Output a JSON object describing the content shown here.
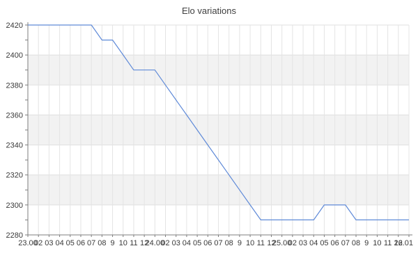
{
  "title": "Elo variations",
  "colors": {
    "background": "#ffffff",
    "band": "#f2f2f2",
    "vgrid": "#e4e4e4",
    "hgrid": "#dfdfdf",
    "axis": "#7d7d7d",
    "label_text": "#3a3a3a",
    "title_text": "#404040",
    "line": "#5f8ad8"
  },
  "chart_data": {
    "type": "line",
    "title": "Elo variations",
    "xlabel": "",
    "ylabel": "",
    "legend": "none",
    "grid": true,
    "alternating_bands": true,
    "ylim": [
      2280,
      2420
    ],
    "y_major_step": 20,
    "y_minor_step": 10,
    "y_tick_labels": [
      "2280",
      "2300",
      "2320",
      "2340",
      "2360",
      "2380",
      "2400",
      "2420"
    ],
    "x_labels": [
      "23.00",
      "02",
      "03",
      "04",
      "05",
      "06",
      "07",
      "08",
      "9",
      "10",
      "11",
      "12",
      "24.00",
      "02",
      "03",
      "04",
      "05",
      "06",
      "07",
      "08",
      "9",
      "10",
      "11",
      "12",
      "25.00",
      "02",
      "03",
      "04",
      "05",
      "06",
      "07",
      "08",
      "9",
      "10",
      "11",
      "12",
      "26.01"
    ],
    "values": [
      2420,
      2420,
      2420,
      2420,
      2420,
      2420,
      2420,
      2410,
      2410,
      2400,
      2390,
      2390,
      2390,
      2380,
      2370,
      2360,
      2350,
      2340,
      2330,
      2320,
      2310,
      2300,
      2290,
      2290,
      2290,
      2290,
      2290,
      2290,
      2300,
      2300,
      2300,
      2290,
      2290,
      2290,
      2290,
      2290,
      2290
    ]
  }
}
